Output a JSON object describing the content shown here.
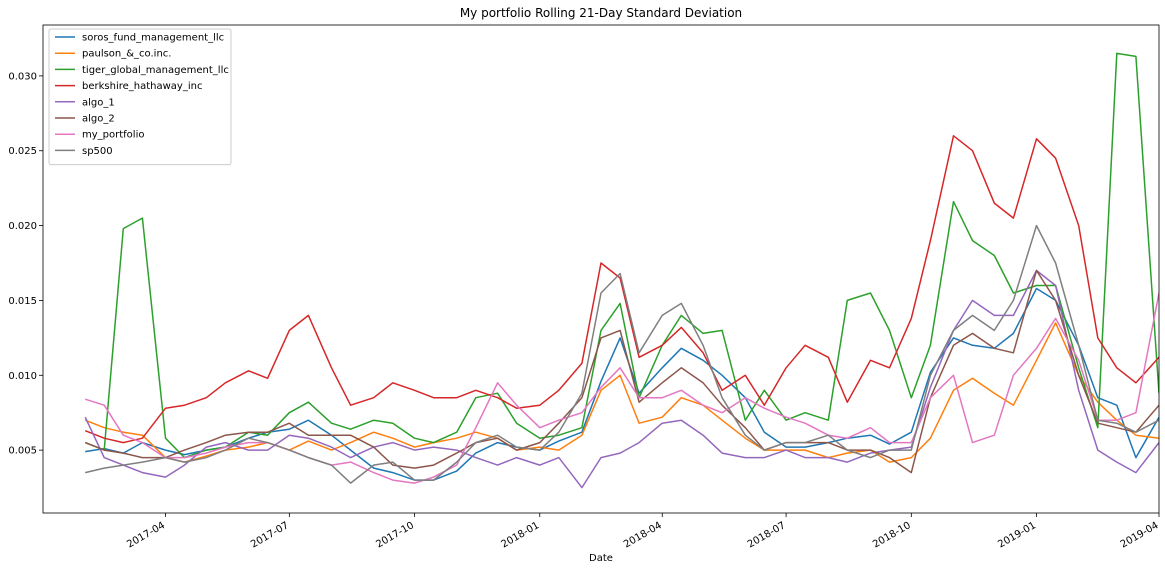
{
  "chart_data": {
    "type": "line",
    "title": "My portfolio Rolling 21-Day Standard Deviation",
    "xlabel": "Date",
    "ylabel": "",
    "x_dates": [
      "2017-02-01",
      "2017-02-15",
      "2017-03-01",
      "2017-03-15",
      "2017-04-01",
      "2017-04-15",
      "2017-05-01",
      "2017-05-15",
      "2017-06-01",
      "2017-06-15",
      "2017-07-01",
      "2017-07-15",
      "2017-08-01",
      "2017-08-15",
      "2017-09-01",
      "2017-09-15",
      "2017-10-01",
      "2017-10-15",
      "2017-11-01",
      "2017-11-15",
      "2017-12-01",
      "2017-12-15",
      "2018-01-01",
      "2018-01-15",
      "2018-02-01",
      "2018-02-15",
      "2018-03-01",
      "2018-03-15",
      "2018-04-01",
      "2018-04-15",
      "2018-05-01",
      "2018-05-15",
      "2018-06-01",
      "2018-06-15",
      "2018-07-01",
      "2018-07-15",
      "2018-08-01",
      "2018-08-15",
      "2018-09-01",
      "2018-09-15",
      "2018-10-01",
      "2018-10-15",
      "2018-11-01",
      "2018-11-15",
      "2018-12-01",
      "2018-12-15",
      "2019-01-01",
      "2019-01-15",
      "2019-02-01",
      "2019-02-15",
      "2019-03-01",
      "2019-03-15",
      "2019-04-01"
    ],
    "x_range": [
      "2017-01-01",
      "2019-04-01"
    ],
    "x_ticks": [
      "2017-04",
      "2017-07",
      "2017-10",
      "2018-01",
      "2018-04",
      "2018-07",
      "2018-10",
      "2019-01",
      "2019-04"
    ],
    "ylim": [
      0.0008,
      0.0334
    ],
    "y_ticks": [
      "0.005",
      "0.010",
      "0.015",
      "0.020",
      "0.025",
      "0.030"
    ],
    "legend_position": "top-left",
    "grid": false,
    "series": [
      {
        "name": "soros_fund_management_llc",
        "color": "#1f77b4",
        "values": [
          0.0049,
          0.0051,
          0.0048,
          0.0055,
          0.005,
          0.0047,
          0.005,
          0.0052,
          0.0058,
          0.0062,
          0.0064,
          0.007,
          0.006,
          0.005,
          0.0038,
          0.0035,
          0.003,
          0.003,
          0.0036,
          0.0048,
          0.0055,
          0.0052,
          0.005,
          0.0056,
          0.0062,
          0.0096,
          0.0125,
          0.0088,
          0.0105,
          0.0118,
          0.011,
          0.01,
          0.0085,
          0.0062,
          0.0052,
          0.0052,
          0.0055,
          0.0058,
          0.006,
          0.0054,
          0.0062,
          0.0102,
          0.0125,
          0.012,
          0.0118,
          0.0128,
          0.0158,
          0.015,
          0.012,
          0.0085,
          0.008,
          0.0045,
          0.0072
        ]
      },
      {
        "name": "paulson_&_co.inc.",
        "color": "#ff7f0e",
        "values": [
          0.007,
          0.0065,
          0.0062,
          0.006,
          0.0045,
          0.0042,
          0.0046,
          0.005,
          0.0052,
          0.0055,
          0.005,
          0.0056,
          0.005,
          0.0055,
          0.0062,
          0.0058,
          0.0052,
          0.0055,
          0.0058,
          0.0062,
          0.0058,
          0.005,
          0.0052,
          0.005,
          0.006,
          0.009,
          0.01,
          0.0068,
          0.0072,
          0.0085,
          0.008,
          0.007,
          0.0058,
          0.005,
          0.005,
          0.005,
          0.0045,
          0.0048,
          0.005,
          0.0042,
          0.0045,
          0.0058,
          0.009,
          0.0098,
          0.0088,
          0.008,
          0.011,
          0.0135,
          0.01,
          0.0082,
          0.007,
          0.006,
          0.0058
        ]
      },
      {
        "name": "tiger_global_management_llc",
        "color": "#2ca02c",
        "values": [
          0.0055,
          0.005,
          0.0198,
          0.0205,
          0.0058,
          0.0045,
          0.005,
          0.0052,
          0.0062,
          0.006,
          0.0075,
          0.0082,
          0.0068,
          0.0064,
          0.007,
          0.0068,
          0.0058,
          0.0055,
          0.0062,
          0.0085,
          0.0088,
          0.0068,
          0.0058,
          0.006,
          0.0065,
          0.013,
          0.0148,
          0.0085,
          0.012,
          0.014,
          0.0128,
          0.013,
          0.007,
          0.009,
          0.007,
          0.0075,
          0.007,
          0.015,
          0.0155,
          0.013,
          0.0085,
          0.012,
          0.0216,
          0.019,
          0.018,
          0.0155,
          0.016,
          0.016,
          0.0105,
          0.0065,
          0.0315,
          0.0313,
          0.0088
        ]
      },
      {
        "name": "berkshire_hathaway_inc",
        "color": "#d62728",
        "values": [
          0.0063,
          0.0058,
          0.0055,
          0.0058,
          0.0078,
          0.008,
          0.0085,
          0.0095,
          0.0103,
          0.0098,
          0.013,
          0.014,
          0.0105,
          0.008,
          0.0085,
          0.0095,
          0.009,
          0.0085,
          0.0085,
          0.009,
          0.0085,
          0.0078,
          0.008,
          0.009,
          0.0108,
          0.0175,
          0.0165,
          0.0112,
          0.012,
          0.0132,
          0.0115,
          0.009,
          0.01,
          0.008,
          0.0105,
          0.012,
          0.0112,
          0.0082,
          0.011,
          0.0105,
          0.0138,
          0.019,
          0.026,
          0.025,
          0.0215,
          0.0205,
          0.0258,
          0.0245,
          0.02,
          0.0125,
          0.0105,
          0.0095,
          0.0112
        ]
      },
      {
        "name": "algo_1",
        "color": "#9467bd",
        "values": [
          0.0072,
          0.0045,
          0.004,
          0.0035,
          0.0032,
          0.004,
          0.0052,
          0.0055,
          0.005,
          0.005,
          0.006,
          0.0058,
          0.0052,
          0.0045,
          0.0052,
          0.0055,
          0.005,
          0.0052,
          0.005,
          0.0045,
          0.004,
          0.0045,
          0.004,
          0.0045,
          0.0025,
          0.0045,
          0.0048,
          0.0055,
          0.0068,
          0.007,
          0.006,
          0.0048,
          0.0045,
          0.0045,
          0.005,
          0.0045,
          0.0045,
          0.0042,
          0.0048,
          0.005,
          0.0052,
          0.0092,
          0.013,
          0.015,
          0.014,
          0.014,
          0.017,
          0.016,
          0.009,
          0.005,
          0.0042,
          0.0035,
          0.0055
        ]
      },
      {
        "name": "algo_2",
        "color": "#8c564b",
        "values": [
          0.0055,
          0.005,
          0.0048,
          0.0045,
          0.0045,
          0.005,
          0.0055,
          0.006,
          0.0062,
          0.0062,
          0.0068,
          0.006,
          0.006,
          0.006,
          0.0052,
          0.004,
          0.0038,
          0.004,
          0.0048,
          0.0055,
          0.0058,
          0.005,
          0.0055,
          0.0068,
          0.0085,
          0.0125,
          0.013,
          0.0082,
          0.0095,
          0.0105,
          0.0095,
          0.008,
          0.0065,
          0.005,
          0.0055,
          0.0055,
          0.0055,
          0.005,
          0.005,
          0.0045,
          0.0035,
          0.0085,
          0.012,
          0.0128,
          0.0118,
          0.0115,
          0.017,
          0.015,
          0.01,
          0.0068,
          0.0065,
          0.0062,
          0.008
        ]
      },
      {
        "name": "my_portfolio",
        "color": "#e377c2",
        "values": [
          0.0084,
          0.008,
          0.006,
          0.0055,
          0.0045,
          0.0045,
          0.0048,
          0.0052,
          0.0055,
          0.0055,
          0.005,
          0.0045,
          0.004,
          0.0042,
          0.0035,
          0.003,
          0.0028,
          0.0032,
          0.004,
          0.0065,
          0.0095,
          0.008,
          0.0065,
          0.007,
          0.0075,
          0.0092,
          0.0105,
          0.0085,
          0.0085,
          0.009,
          0.008,
          0.0075,
          0.0085,
          0.0078,
          0.0072,
          0.0068,
          0.006,
          0.0058,
          0.0065,
          0.0055,
          0.0055,
          0.0085,
          0.01,
          0.0055,
          0.006,
          0.01,
          0.0118,
          0.0138,
          0.011,
          0.007,
          0.007,
          0.0075,
          0.0155
        ]
      },
      {
        "name": "sp500",
        "color": "#7f7f7f",
        "values": [
          0.0035,
          0.0038,
          0.004,
          0.0042,
          0.0045,
          0.0042,
          0.0045,
          0.005,
          0.0058,
          0.0055,
          0.005,
          0.0045,
          0.004,
          0.0028,
          0.004,
          0.0042,
          0.003,
          0.003,
          0.0042,
          0.0055,
          0.006,
          0.0052,
          0.005,
          0.0062,
          0.0088,
          0.0155,
          0.0168,
          0.0115,
          0.014,
          0.0148,
          0.012,
          0.0085,
          0.006,
          0.005,
          0.0055,
          0.0055,
          0.006,
          0.005,
          0.0045,
          0.005,
          0.005,
          0.01,
          0.013,
          0.014,
          0.013,
          0.015,
          0.02,
          0.0175,
          0.012,
          0.007,
          0.0068,
          0.0062,
          0.007
        ]
      }
    ]
  }
}
